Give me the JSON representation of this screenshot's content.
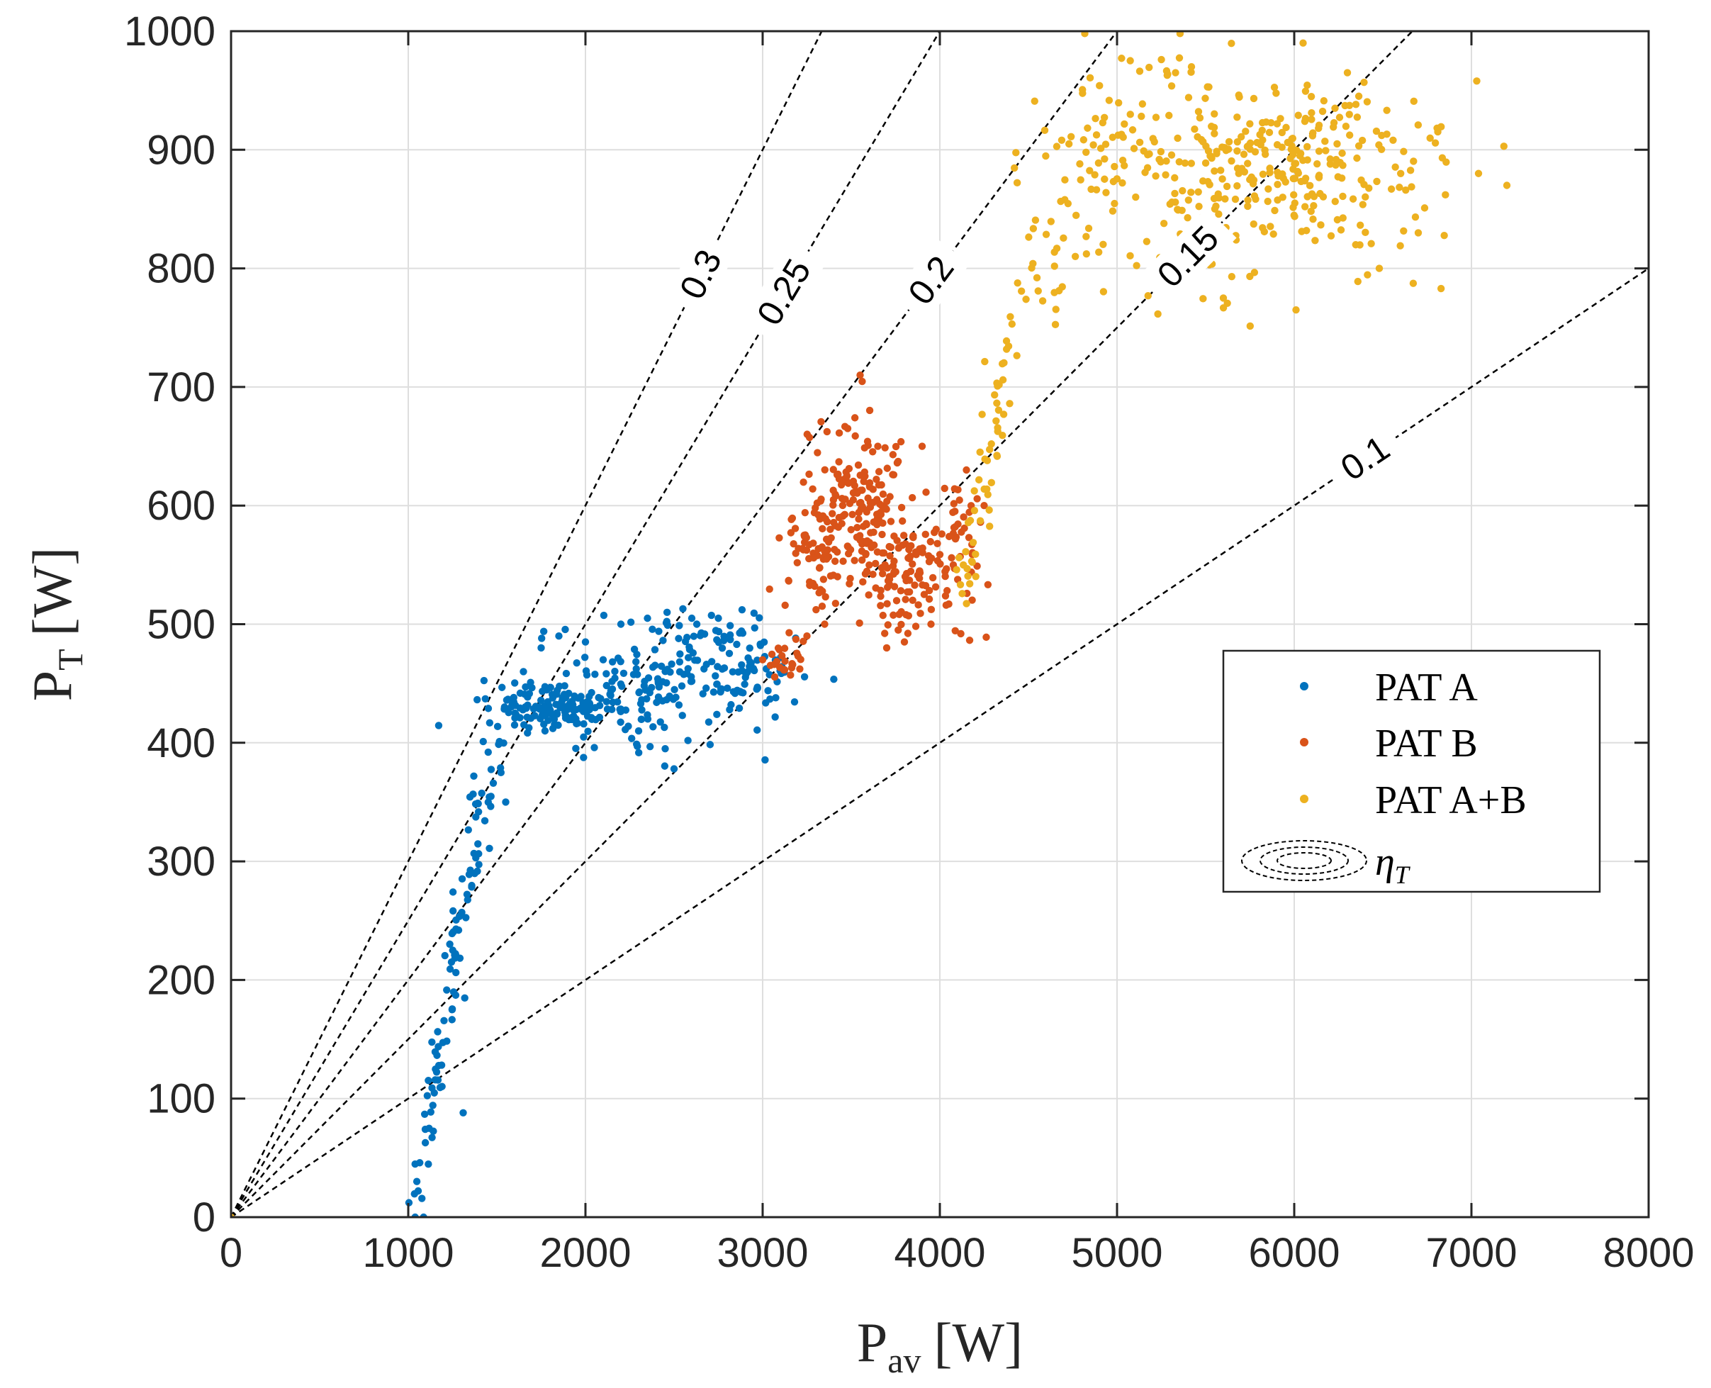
{
  "chart_data": {
    "type": "scatter",
    "title": "",
    "xlabel": {
      "main": "P",
      "sub": "av",
      "unit": "[W]"
    },
    "ylabel": {
      "main": "P",
      "sub": "T",
      "unit": "[W]"
    },
    "xlim": [
      0,
      8000
    ],
    "ylim": [
      0,
      1000
    ],
    "xticks": [
      0,
      1000,
      2000,
      3000,
      4000,
      5000,
      6000,
      7000,
      8000
    ],
    "yticks": [
      0,
      100,
      200,
      300,
      400,
      500,
      600,
      700,
      800,
      900,
      1000
    ],
    "grid": true,
    "legend_position": "right-middle",
    "efficiency_lines": [
      {
        "eta": 0.3,
        "label": "0.3",
        "label_at": [
          2650,
          795
        ]
      },
      {
        "eta": 0.25,
        "label": "0.25",
        "label_at": [
          3120,
          780
        ]
      },
      {
        "eta": 0.2,
        "label": "0.2",
        "label_at": [
          3950,
          790
        ]
      },
      {
        "eta": 0.15,
        "label": "0.15",
        "label_at": [
          5400,
          810
        ]
      },
      {
        "eta": 0.1,
        "label": "0.1",
        "label_at": [
          6400,
          640
        ]
      }
    ],
    "series": [
      {
        "name": "PAT A",
        "color": "#0072BD",
        "segments": [
          {
            "type": "curve",
            "knots": [
              [
                1010,
                0
              ],
              [
                1060,
                40
              ],
              [
                1130,
                100
              ],
              [
                1220,
                170
              ],
              [
                1300,
                250
              ],
              [
                1380,
                320
              ],
              [
                1460,
                380
              ],
              [
                1520,
                420
              ],
              [
                1600,
                432
              ]
            ],
            "n": 110,
            "jx": 35,
            "jy": 10
          },
          {
            "type": "cloud",
            "cx": 1850,
            "cy": 430,
            "sx": 200,
            "sy": 10,
            "n": 140
          },
          {
            "type": "cloud",
            "cx": 2200,
            "cy": 440,
            "sx": 170,
            "sy": 30,
            "n": 60
          },
          {
            "type": "cloud",
            "cx": 2550,
            "cy": 465,
            "sx": 260,
            "sy": 30,
            "n": 110
          },
          {
            "type": "cloud",
            "cx": 2950,
            "cy": 462,
            "sx": 120,
            "sy": 18,
            "n": 50
          },
          {
            "type": "points",
            "pts": [
              [
                1310,
                88
              ],
              [
                1750,
                480
              ],
              [
                1850,
                490
              ],
              [
                2200,
                500
              ],
              [
                2350,
                505
              ],
              [
                2600,
                505
              ],
              [
                2750,
                505
              ],
              [
                2450,
                395
              ],
              [
                2500,
                378
              ],
              [
                1650,
                460
              ],
              [
                1550,
                350
              ],
              [
                1600,
                415
              ],
              [
                2000,
                485
              ],
              [
                2100,
                470
              ],
              [
                2300,
                410
              ]
            ]
          }
        ]
      },
      {
        "name": "PAT B",
        "color": "#D95319",
        "segments": [
          {
            "type": "cloud",
            "cx": 3260,
            "cy": 555,
            "sx": 55,
            "sy": 30,
            "n": 40
          },
          {
            "type": "cloud",
            "cx": 3520,
            "cy": 610,
            "sx": 160,
            "sy": 30,
            "n": 120
          },
          {
            "type": "cloud",
            "cx": 3550,
            "cy": 565,
            "sx": 160,
            "sy": 22,
            "n": 80
          },
          {
            "type": "cloud",
            "cx": 3820,
            "cy": 535,
            "sx": 120,
            "sy": 22,
            "n": 90
          },
          {
            "type": "cloud",
            "cx": 4100,
            "cy": 565,
            "sx": 80,
            "sy": 35,
            "n": 45
          },
          {
            "type": "cloud",
            "cx": 3100,
            "cy": 470,
            "sx": 60,
            "sy": 10,
            "n": 25
          },
          {
            "type": "points",
            "pts": [
              [
                3550,
                710
              ],
              [
                3480,
                665
              ],
              [
                3700,
                480
              ],
              [
                3800,
                485
              ],
              [
                3950,
                500
              ],
              [
                3350,
                500
              ],
              [
                3250,
                490
              ],
              [
                4150,
                630
              ],
              [
                4250,
                600
              ],
              [
                3650,
                650
              ],
              [
                3900,
                650
              ],
              [
                3000,
                470
              ]
            ]
          }
        ]
      },
      {
        "name": "PAT A+B",
        "color": "#EDB120",
        "segments": [
          {
            "type": "curve",
            "knots": [
              [
                4100,
                520
              ],
              [
                4200,
                580
              ],
              [
                4280,
                640
              ],
              [
                4330,
                700
              ],
              [
                4420,
                760
              ],
              [
                4500,
                800
              ],
              [
                4600,
                810
              ],
              [
                4700,
                780
              ]
            ],
            "n": 75,
            "jx": 30,
            "jy": 18
          },
          {
            "type": "cloud",
            "cx": 4800,
            "cy": 880,
            "sx": 220,
            "sy": 50,
            "n": 60
          },
          {
            "type": "cloud",
            "cx": 5300,
            "cy": 900,
            "sx": 230,
            "sy": 45,
            "n": 70
          },
          {
            "type": "cloud",
            "cx": 5900,
            "cy": 895,
            "sx": 280,
            "sy": 28,
            "n": 150
          },
          {
            "type": "cloud",
            "cx": 5700,
            "cy": 845,
            "sx": 250,
            "sy": 35,
            "n": 50
          },
          {
            "type": "cloud",
            "cx": 6400,
            "cy": 880,
            "sx": 230,
            "sy": 40,
            "n": 70
          },
          {
            "type": "points",
            "pts": [
              [
                0,
                0
              ],
              [
                6050,
                990
              ],
              [
                5420,
                970
              ],
              [
                5330,
                965
              ],
              [
                7030,
                958
              ],
              [
                7200,
                870
              ],
              [
                7040,
                880
              ],
              [
                6480,
                800
              ],
              [
                6010,
                765
              ],
              [
                5600,
                775
              ],
              [
                6300,
                965
              ],
              [
                6230,
                935
              ],
              [
                5500,
                820
              ],
              [
                6700,
                830
              ]
            ]
          }
        ]
      }
    ]
  },
  "legend": {
    "items": [
      {
        "main": "PAT A",
        "sub": ""
      },
      {
        "main": "PAT B",
        "sub": ""
      },
      {
        "main": "PAT A+B",
        "sub": ""
      },
      {
        "main": "η",
        "sub": "T"
      }
    ]
  }
}
